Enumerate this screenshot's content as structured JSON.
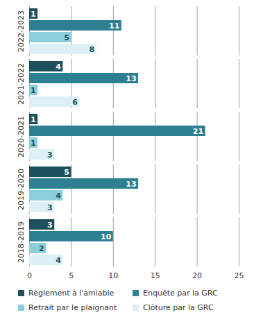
{
  "chart_data": {
    "type": "bar",
    "orientation": "horizontal",
    "categories": [
      "2022-2023",
      "2021-2022",
      "2020-2021",
      "2019-2020",
      "2018-2019"
    ],
    "series": [
      {
        "name": "Règlement à l'amiable",
        "color": "#1d4f5c",
        "values": [
          1,
          4,
          1,
          5,
          3
        ]
      },
      {
        "name": "Enquête par la GRC",
        "color": "#2f7f92",
        "values": [
          11,
          13,
          21,
          13,
          10
        ]
      },
      {
        "name": "Retrait par le plaignant",
        "color": "#8ccfdc",
        "values": [
          5,
          1,
          1,
          4,
          2
        ]
      },
      {
        "name": "Clôture par la GRC",
        "color": "#ddf0f5",
        "values": [
          8,
          6,
          3,
          3,
          4
        ]
      }
    ],
    "xlim": [
      0,
      25
    ],
    "xticks": [
      0,
      5,
      10,
      15,
      20,
      25
    ],
    "grid": true,
    "data_labels": true,
    "legend": "bottom"
  }
}
